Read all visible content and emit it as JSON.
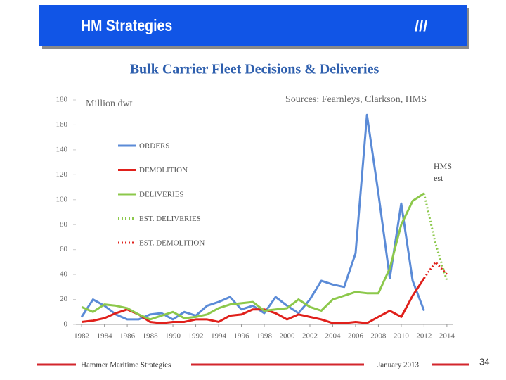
{
  "header": {
    "title": "HM Strategies",
    "mark": "///"
  },
  "footer": {
    "company": "Hammer Maritime Strategies",
    "date": "January 2013",
    "page": "34"
  },
  "chart_data": {
    "type": "line",
    "title": "Bulk Carrier Fleet Decisions & Deliveries",
    "y_label": "Million dwt",
    "source": "Sources: Fearnleys, Clarkson, HMS",
    "annotation": [
      "HMS",
      "est"
    ],
    "x": [
      1982,
      1983,
      1984,
      1985,
      1986,
      1987,
      1988,
      1989,
      1990,
      1991,
      1992,
      1993,
      1994,
      1995,
      1996,
      1997,
      1998,
      1999,
      2000,
      2001,
      2002,
      2003,
      2004,
      2005,
      2006,
      2007,
      2008,
      2009,
      2010,
      2011,
      2012,
      2013,
      2014
    ],
    "series": [
      {
        "name": "ORDERS",
        "color": "#5b8bd7",
        "style": "solid",
        "values": [
          6,
          20,
          15,
          8,
          4,
          4,
          8,
          9,
          4,
          10,
          7,
          15,
          18,
          22,
          12,
          15,
          9,
          22,
          15,
          9,
          20,
          35,
          32,
          30,
          57,
          168,
          105,
          37,
          97,
          35,
          11,
          null,
          null
        ]
      },
      {
        "name": "DEMOLITION",
        "color": "#e0201b",
        "style": "solid",
        "values": [
          2,
          3,
          5,
          9,
          12,
          8,
          2,
          1,
          2,
          2,
          4,
          4,
          2,
          7,
          8,
          12,
          12,
          9,
          4,
          8,
          6,
          4,
          1,
          1,
          2,
          1,
          6,
          11,
          6,
          23,
          37,
          null,
          null
        ]
      },
      {
        "name": "DELIVERIES",
        "color": "#8cc84b",
        "style": "solid",
        "values": [
          14,
          10,
          16,
          15,
          13,
          8,
          4,
          7,
          10,
          5,
          6,
          8,
          13,
          16,
          17,
          18,
          11,
          12,
          13,
          20,
          14,
          11,
          20,
          23,
          26,
          25,
          25,
          45,
          80,
          99,
          105,
          null,
          null
        ]
      },
      {
        "name": "EST. DELIVERIES",
        "color": "#8cc84b",
        "style": "dotted",
        "values": [
          null,
          null,
          null,
          null,
          null,
          null,
          null,
          null,
          null,
          null,
          null,
          null,
          null,
          null,
          null,
          null,
          null,
          null,
          null,
          null,
          null,
          null,
          null,
          null,
          null,
          null,
          null,
          null,
          null,
          null,
          105,
          65,
          35
        ]
      },
      {
        "name": "EST. DEMOLITION",
        "color": "#e0201b",
        "style": "dotted",
        "values": [
          null,
          null,
          null,
          null,
          null,
          null,
          null,
          null,
          null,
          null,
          null,
          null,
          null,
          null,
          null,
          null,
          null,
          null,
          null,
          null,
          null,
          null,
          null,
          null,
          null,
          null,
          null,
          null,
          null,
          null,
          37,
          50,
          40
        ]
      }
    ],
    "xlim": [
      1981.5,
      2014.5
    ],
    "xticks": [
      1982,
      1984,
      1986,
      1988,
      1990,
      1992,
      1994,
      1996,
      1998,
      2000,
      2002,
      2004,
      2006,
      2008,
      2010,
      2012,
      2014
    ],
    "ylim": [
      0,
      180
    ],
    "yticks": [
      0,
      20,
      40,
      60,
      80,
      100,
      120,
      140,
      160,
      180
    ],
    "legend": "top-left"
  }
}
